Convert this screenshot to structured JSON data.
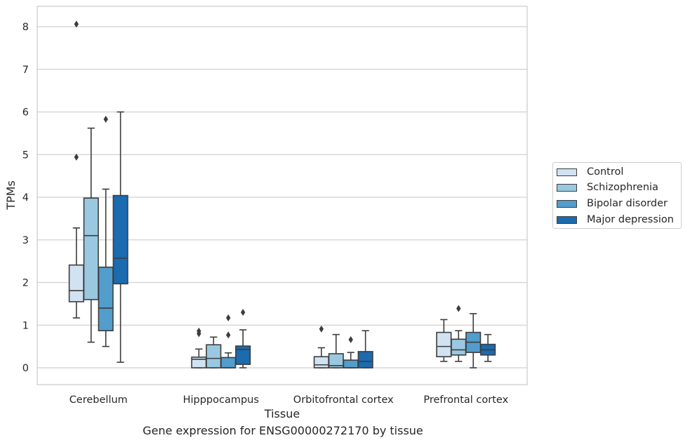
{
  "chart_data": {
    "type": "box",
    "xlabel": "Tissue",
    "ylabel": "TPMs",
    "ylim": [
      -0.4,
      8.5
    ],
    "yticks": [
      0,
      1,
      2,
      3,
      4,
      5,
      6,
      7,
      8
    ],
    "categories": [
      "Cerebellum",
      "Hipppocampus",
      "Orbitofrontal cortex",
      "Prefrontal cortex"
    ],
    "grid": "horizontal",
    "legend_position": "right",
    "series": [
      {
        "name": "Control",
        "color": "#d1e2f2",
        "boxes": [
          {
            "whislo": 1.17,
            "q1": 1.55,
            "med": 1.81,
            "q3": 2.41,
            "whishi": 3.28,
            "fliers": [
              4.94,
              8.06
            ]
          },
          {
            "whislo": 0.0,
            "q1": 0.0,
            "med": 0.2,
            "q3": 0.25,
            "whishi": 0.44,
            "fliers": [
              0.8,
              0.86
            ]
          },
          {
            "whislo": 0.0,
            "q1": 0.0,
            "med": 0.07,
            "q3": 0.26,
            "whishi": 0.47,
            "fliers": [
              0.91
            ]
          },
          {
            "whislo": 0.15,
            "q1": 0.26,
            "med": 0.5,
            "q3": 0.83,
            "whishi": 1.13,
            "fliers": []
          }
        ]
      },
      {
        "name": "Schizophrenia",
        "color": "#9ac8e0",
        "boxes": [
          {
            "whislo": 0.6,
            "q1": 1.6,
            "med": 3.1,
            "q3": 3.98,
            "whishi": 5.62,
            "fliers": []
          },
          {
            "whislo": 0.0,
            "q1": 0.0,
            "med": 0.22,
            "q3": 0.54,
            "whishi": 0.72,
            "fliers": []
          },
          {
            "whislo": 0.0,
            "q1": 0.0,
            "med": 0.05,
            "q3": 0.33,
            "whishi": 0.78,
            "fliers": []
          },
          {
            "whislo": 0.15,
            "q1": 0.3,
            "med": 0.42,
            "q3": 0.67,
            "whishi": 0.87,
            "fliers": [
              1.39
            ]
          }
        ]
      },
      {
        "name": "Bipolar disorder",
        "color": "#529dcc",
        "boxes": [
          {
            "whislo": 0.5,
            "q1": 0.87,
            "med": 1.4,
            "q3": 2.36,
            "whishi": 4.19,
            "fliers": [
              5.83
            ]
          },
          {
            "whislo": 0.0,
            "q1": 0.0,
            "med": 0.0,
            "q3": 0.24,
            "whishi": 0.35,
            "fliers": [
              0.77,
              1.17
            ]
          },
          {
            "whislo": 0.0,
            "q1": 0.0,
            "med": 0.0,
            "q3": 0.18,
            "whishi": 0.36,
            "fliers": [
              0.66
            ]
          },
          {
            "whislo": 0.0,
            "q1": 0.36,
            "med": 0.6,
            "q3": 0.83,
            "whishi": 1.27,
            "fliers": []
          }
        ]
      },
      {
        "name": "Major depression",
        "color": "#1c6aaf",
        "boxes": [
          {
            "whislo": 0.13,
            "q1": 1.97,
            "med": 2.57,
            "q3": 4.04,
            "whishi": 6.0,
            "fliers": []
          },
          {
            "whislo": 0.0,
            "q1": 0.08,
            "med": 0.43,
            "q3": 0.51,
            "whishi": 0.89,
            "fliers": [
              1.3
            ]
          },
          {
            "whislo": 0.0,
            "q1": 0.0,
            "med": 0.15,
            "q3": 0.38,
            "whishi": 0.87,
            "fliers": []
          },
          {
            "whislo": 0.15,
            "q1": 0.3,
            "med": 0.42,
            "q3": 0.55,
            "whishi": 0.78,
            "fliers": []
          }
        ]
      }
    ]
  },
  "caption": "Gene expression for ENSG00000272170 by tissue"
}
